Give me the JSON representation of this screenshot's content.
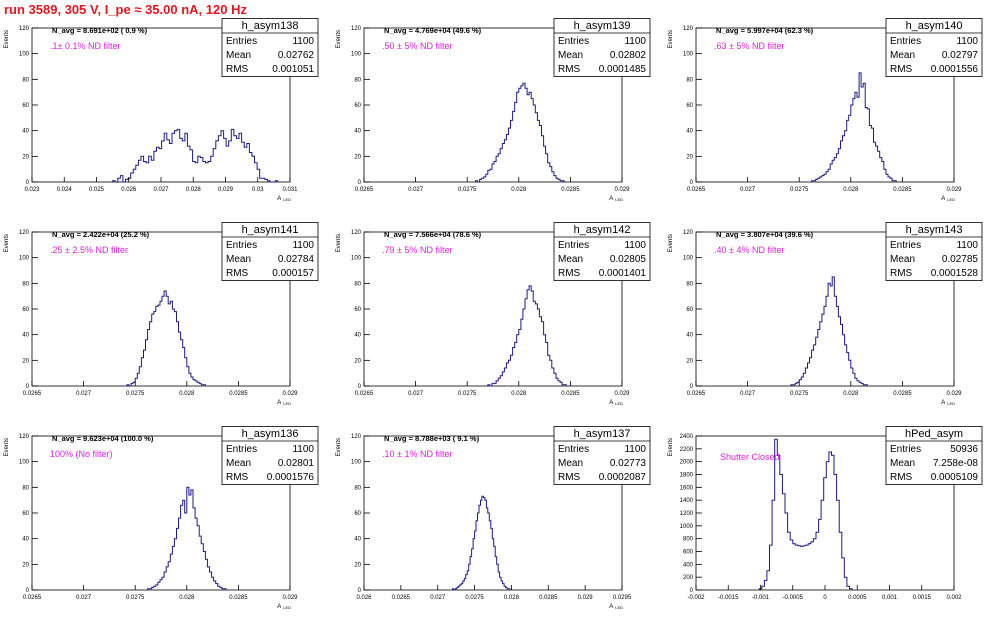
{
  "page_title": "run 3589,   305 V, I_pe ≈ 35.00 nA, 120 Hz",
  "colors": {
    "title": "#e8141e",
    "histogram": "#1a1a8c",
    "annotation": "#e020e0",
    "axis": "#000000"
  },
  "chart_data": [
    {
      "type": "bar",
      "title": "h_asym138",
      "navg": "N_avg = 8.691e+02 ( 0.9 %)",
      "filter": ".1± 0.1% ND filter",
      "stats": {
        "entries_label": "Entries",
        "entries": "1100",
        "mean_label": "Mean",
        "mean": "0.02762",
        "rms_label": "RMS",
        "rms": "0.001051"
      },
      "xlabel": "A_LED",
      "ylabel": "Events",
      "xlim": [
        0.023,
        0.031
      ],
      "ylim": [
        0,
        120
      ],
      "xticks": [
        "0.023",
        "0.024",
        "0.025",
        "0.026",
        "0.027",
        "0.028",
        "0.029",
        "0.03",
        "0.031"
      ],
      "yticks": [
        "0",
        "20",
        "40",
        "60",
        "80",
        "100",
        "120"
      ],
      "bin_start": 0.0255,
      "bin_width": 8e-05,
      "values": [
        1,
        0,
        3,
        5,
        0,
        2,
        3,
        7,
        10,
        13,
        17,
        20,
        16,
        15,
        20,
        17,
        24,
        27,
        26,
        32,
        38,
        33,
        30,
        38,
        40,
        41,
        34,
        32,
        38,
        28,
        25,
        16,
        15,
        20,
        19,
        16,
        15,
        16,
        20,
        26,
        32,
        36,
        40,
        34,
        28,
        32,
        41,
        36,
        34,
        38,
        31,
        27,
        30,
        23,
        20,
        15,
        10,
        3,
        3,
        2,
        1,
        0,
        0,
        1
      ]
    },
    {
      "type": "bar",
      "title": "h_asym139",
      "navg": "N_avg = 4.769e+04 (49.6 %)",
      "filter": ".50 ± 5% ND filter",
      "stats": {
        "entries_label": "Entries",
        "entries": "1100",
        "mean_label": "Mean",
        "mean": "0.02802",
        "rms_label": "RMS",
        "rms": "0.0001485"
      },
      "xlabel": "A_LED",
      "ylabel": "Events",
      "xlim": [
        0.0265,
        0.029
      ],
      "ylim": [
        0,
        120
      ],
      "xticks": [
        "0.0265",
        "0.027",
        "0.0275",
        "0.028",
        "0.0285",
        "0.029"
      ],
      "yticks": [
        "0",
        "20",
        "40",
        "60",
        "80",
        "100",
        "120"
      ],
      "bin_start": 0.02758,
      "bin_width": 2e-05,
      "values": [
        1,
        0,
        2,
        3,
        4,
        6,
        9,
        10,
        14,
        16,
        20,
        22,
        26,
        30,
        33,
        37,
        42,
        48,
        55,
        62,
        70,
        73,
        75,
        77,
        73,
        68,
        70,
        65,
        60,
        54,
        48,
        44,
        36,
        28,
        22,
        15,
        12,
        8,
        5,
        3,
        2,
        1,
        1
      ]
    },
    {
      "type": "bar",
      "title": "h_asym140",
      "navg": "N_avg = 5.997e+04 (62.3 %)",
      "filter": ".63 ± 5% ND filter",
      "stats": {
        "entries_label": "Entries",
        "entries": "1100",
        "mean_label": "Mean",
        "mean": "0.02797",
        "rms_label": "RMS",
        "rms": "0.0001556"
      },
      "xlabel": "A_LED",
      "ylabel": "Events",
      "xlim": [
        0.0265,
        0.029
      ],
      "ylim": [
        0,
        120
      ],
      "xticks": [
        "0.0265",
        "0.027",
        "0.0275",
        "0.028",
        "0.0285",
        "0.029"
      ],
      "yticks": [
        "0",
        "20",
        "40",
        "60",
        "80",
        "100",
        "120"
      ],
      "bin_start": 0.02762,
      "bin_width": 2e-05,
      "values": [
        1,
        1,
        2,
        3,
        4,
        5,
        6,
        8,
        10,
        14,
        17,
        19,
        22,
        26,
        32,
        36,
        40,
        48,
        52,
        60,
        65,
        70,
        66,
        85,
        74,
        77,
        58,
        57,
        44,
        42,
        31,
        28,
        24,
        19,
        16,
        10,
        6,
        4,
        3,
        1,
        1
      ]
    },
    {
      "type": "bar",
      "title": "h_asym141",
      "navg": "N_avg = 2.422e+04 (25.2 %)",
      "filter": ".25 ± 2.5% ND filter",
      "stats": {
        "entries_label": "Entries",
        "entries": "1100",
        "mean_label": "Mean",
        "mean": "0.02784",
        "rms_label": "RMS",
        "rms": "0.000157"
      },
      "xlabel": "A_LED",
      "ylabel": "Events",
      "xlim": [
        0.0265,
        0.029
      ],
      "ylim": [
        0,
        120
      ],
      "xticks": [
        "0.0265",
        "0.027",
        "0.0275",
        "0.028",
        "0.0285",
        "0.029"
      ],
      "yticks": [
        "0",
        "20",
        "40",
        "60",
        "80",
        "100",
        "120"
      ],
      "bin_start": 0.02742,
      "bin_width": 2e-05,
      "values": [
        1,
        0,
        2,
        3,
        6,
        10,
        15,
        22,
        28,
        36,
        44,
        50,
        56,
        58,
        62,
        63,
        66,
        70,
        74,
        70,
        64,
        66,
        60,
        58,
        50,
        42,
        36,
        30,
        22,
        15,
        10,
        7,
        5,
        4,
        3,
        2,
        1,
        1
      ]
    },
    {
      "type": "bar",
      "title": "h_asym142",
      "navg": "N_avg = 7.566e+04 (78.6 %)",
      "filter": ".79 ± 5% ND filter",
      "stats": {
        "entries_label": "Entries",
        "entries": "1100",
        "mean_label": "Mean",
        "mean": "0.02805",
        "rms_label": "RMS",
        "rms": "0.0001401"
      },
      "xlabel": "A_LED",
      "ylabel": "Events",
      "xlim": [
        0.0265,
        0.029
      ],
      "ylim": [
        0,
        120
      ],
      "xticks": [
        "0.0265",
        "0.027",
        "0.0275",
        "0.028",
        "0.0285",
        "0.029"
      ],
      "yticks": [
        "0",
        "20",
        "40",
        "60",
        "80",
        "100",
        "120"
      ],
      "bin_start": 0.0277,
      "bin_width": 2e-05,
      "values": [
        1,
        0,
        2,
        2,
        4,
        6,
        8,
        11,
        14,
        18,
        20,
        24,
        30,
        34,
        40,
        44,
        52,
        60,
        68,
        75,
        78,
        74,
        66,
        64,
        60,
        54,
        50,
        40,
        34,
        24,
        20,
        14,
        10,
        6,
        4,
        3,
        1,
        1
      ]
    },
    {
      "type": "bar",
      "title": "h_asym143",
      "navg": "N_avg = 3.807e+04 (39.6 %)",
      "filter": ".40 ± 4% ND filter",
      "stats": {
        "entries_label": "Entries",
        "entries": "1100",
        "mean_label": "Mean",
        "mean": "0.02785",
        "rms_label": "RMS",
        "rms": "0.0001528"
      },
      "xlabel": "A_LED",
      "ylabel": "Events",
      "xlim": [
        0.0265,
        0.029
      ],
      "ylim": [
        0,
        120
      ],
      "xticks": [
        "0.0265",
        "0.027",
        "0.0275",
        "0.028",
        "0.0285",
        "0.029"
      ],
      "yticks": [
        "0",
        "20",
        "40",
        "60",
        "80",
        "100",
        "120"
      ],
      "bin_start": 0.02742,
      "bin_width": 2e-05,
      "values": [
        1,
        1,
        2,
        3,
        5,
        7,
        10,
        14,
        18,
        22,
        28,
        32,
        38,
        44,
        50,
        56,
        62,
        70,
        80,
        78,
        85,
        70,
        62,
        54,
        48,
        40,
        32,
        26,
        20,
        14,
        10,
        6,
        4,
        3,
        2,
        1,
        1
      ]
    },
    {
      "type": "bar",
      "title": "h_asym136",
      "navg": "N_avg = 9.623e+04 (100.0 %)",
      "filter": "100% (No filter)",
      "stats": {
        "entries_label": "Entries",
        "entries": "1100",
        "mean_label": "Mean",
        "mean": "0.02801",
        "rms_label": "RMS",
        "rms": "0.0001576"
      },
      "xlabel": "A_LED",
      "ylabel": "Events",
      "xlim": [
        0.0265,
        0.029
      ],
      "ylim": [
        0,
        120
      ],
      "xticks": [
        "0.0265",
        "0.027",
        "0.0275",
        "0.028",
        "0.0285",
        "0.029"
      ],
      "yticks": [
        "0",
        "20",
        "40",
        "60",
        "80",
        "100",
        "120"
      ],
      "bin_start": 0.02762,
      "bin_width": 2e-05,
      "values": [
        1,
        1,
        2,
        3,
        4,
        6,
        8,
        10,
        14,
        18,
        22,
        28,
        34,
        40,
        48,
        56,
        66,
        70,
        60,
        80,
        74,
        78,
        64,
        56,
        50,
        42,
        36,
        30,
        24,
        18,
        14,
        10,
        7,
        5,
        3,
        2,
        1,
        1
      ]
    },
    {
      "type": "bar",
      "title": "h_asym137",
      "navg": "N_avg = 8.788e+03 ( 9.1 %)",
      "filter": ".10 ± 1% ND filter",
      "stats": {
        "entries_label": "Entries",
        "entries": "1100",
        "mean_label": "Mean",
        "mean": "0.02773",
        "rms_label": "RMS",
        "rms": "0.0002087"
      },
      "xlabel": "A_LED",
      "ylabel": "Events",
      "xlim": [
        0.026,
        0.0295
      ],
      "ylim": [
        0,
        120
      ],
      "xticks": [
        "0.026",
        "0.0265",
        "0.027",
        "0.0275",
        "0.028",
        "0.0285",
        "0.029",
        "0.0295"
      ],
      "yticks": [
        "0",
        "20",
        "40",
        "60",
        "80",
        "100",
        "120"
      ],
      "bin_start": 0.0272,
      "bin_width": 2e-05,
      "values": [
        1,
        0,
        1,
        2,
        3,
        4,
        5,
        7,
        9,
        12,
        15,
        20,
        26,
        32,
        40,
        46,
        54,
        60,
        66,
        70,
        73,
        72,
        70,
        64,
        60,
        54,
        48,
        40,
        34,
        26,
        20,
        14,
        10,
        7,
        5,
        3,
        2,
        1,
        1
      ]
    },
    {
      "type": "bar",
      "title": "hPed_asym",
      "navg": "",
      "filter": "Shutter Closed",
      "stats": {
        "entries_label": "Entries",
        "entries": "50936",
        "mean_label": "Mean",
        "mean": "7.258e-08",
        "rms_label": "RMS",
        "rms": "0.0005109"
      },
      "xlabel": "",
      "ylabel": "Events",
      "xlim": [
        -0.002,
        0.002
      ],
      "ylim": [
        0,
        2400
      ],
      "xticks": [
        "-0.002",
        "-0.0015",
        "-0.001",
        "-0.0005",
        "0",
        "0.0005",
        "0.001",
        "0.0015",
        "0.002"
      ],
      "yticks": [
        "0",
        "200",
        "400",
        "600",
        "800",
        "1000",
        "1200",
        "1400",
        "1600",
        "1800",
        "2000",
        "2200",
        "2400"
      ],
      "bin_start": -0.00102,
      "bin_width": 4e-05,
      "values": [
        20,
        60,
        150,
        300,
        700,
        1400,
        2350,
        2100,
        1800,
        1500,
        1200,
        900,
        780,
        720,
        700,
        690,
        680,
        690,
        700,
        720,
        750,
        800,
        900,
        1100,
        1400,
        1750,
        2000,
        2150,
        2100,
        1800,
        1400,
        900,
        500,
        200,
        60,
        20
      ]
    }
  ]
}
